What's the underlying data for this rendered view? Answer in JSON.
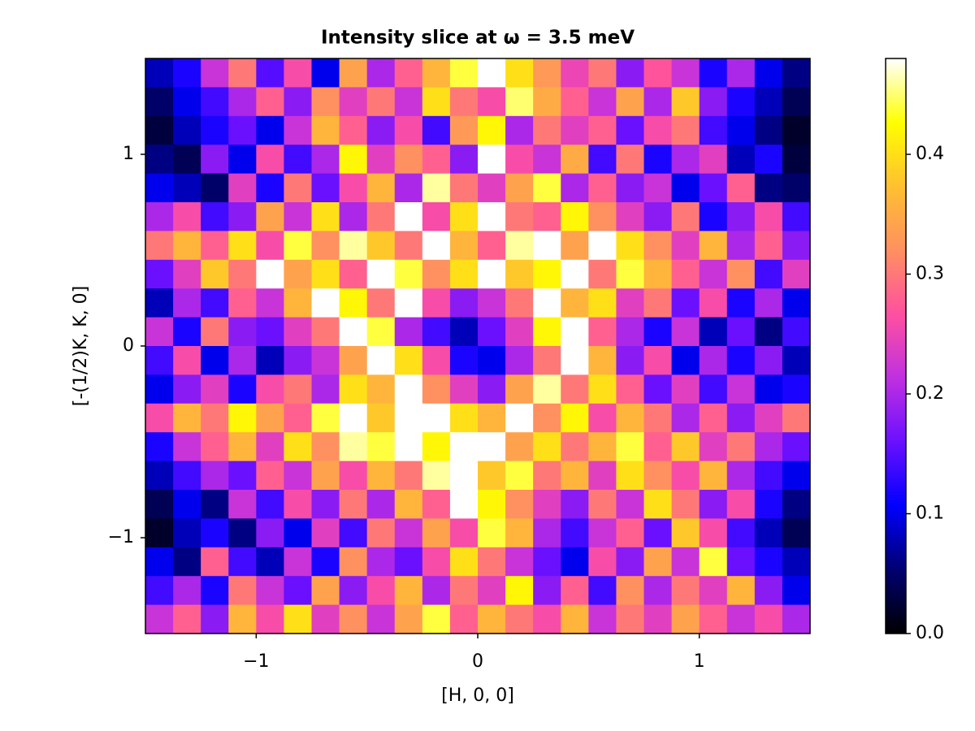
{
  "chart_data": {
    "type": "heatmap",
    "title": "Intensity slice at ω = 3.5 meV",
    "xlabel": "[H, 0, 0]",
    "ylabel": "[-(1/2)K, K, 0]",
    "xlim": [
      -1.5,
      1.5
    ],
    "ylim": [
      -1.5,
      1.5
    ],
    "xticks": [
      {
        "value": -1,
        "label": "−1"
      },
      0,
      1
    ],
    "yticks": [
      {
        "value": -1,
        "label": "−1"
      },
      0,
      1
    ],
    "clim": [
      0,
      0.48
    ],
    "cticks": [
      {
        "value": 0,
        "label": "0.0"
      },
      0.1,
      0.2,
      0.3,
      0.4
    ],
    "colormap": [
      "#000000",
      "#000070",
      "#0000ff",
      "#6a10ff",
      "#c030e0",
      "#ff50a0",
      "#ff9060",
      "#ffc030",
      "#ffff00",
      "#ffffff"
    ],
    "z": [
      [
        0.08,
        0.12,
        0.22,
        0.3,
        0.15,
        0.26,
        0.1,
        0.34,
        0.2,
        0.28,
        0.36,
        0.44,
        0.48,
        0.4,
        0.33,
        0.25,
        0.3,
        0.18,
        0.27,
        0.22,
        0.12,
        0.2,
        0.1,
        0.06
      ],
      [
        0.05,
        0.1,
        0.14,
        0.2,
        0.28,
        0.18,
        0.32,
        0.24,
        0.3,
        0.22,
        0.4,
        0.3,
        0.26,
        0.45,
        0.35,
        0.28,
        0.22,
        0.34,
        0.2,
        0.38,
        0.18,
        0.12,
        0.08,
        0.04
      ],
      [
        0.03,
        0.08,
        0.12,
        0.16,
        0.1,
        0.22,
        0.36,
        0.28,
        0.18,
        0.26,
        0.14,
        0.33,
        0.42,
        0.2,
        0.3,
        0.24,
        0.28,
        0.16,
        0.26,
        0.3,
        0.14,
        0.1,
        0.06,
        0.02
      ],
      [
        0.06,
        0.04,
        0.18,
        0.1,
        0.26,
        0.14,
        0.2,
        0.42,
        0.24,
        0.32,
        0.28,
        0.18,
        0.48,
        0.26,
        0.22,
        0.35,
        0.14,
        0.3,
        0.12,
        0.2,
        0.24,
        0.08,
        0.12,
        0.03
      ],
      [
        0.1,
        0.08,
        0.05,
        0.24,
        0.12,
        0.3,
        0.16,
        0.26,
        0.36,
        0.2,
        0.46,
        0.3,
        0.24,
        0.34,
        0.44,
        0.2,
        0.28,
        0.18,
        0.22,
        0.1,
        0.16,
        0.28,
        0.06,
        0.05
      ],
      [
        0.2,
        0.26,
        0.14,
        0.18,
        0.34,
        0.22,
        0.4,
        0.2,
        0.3,
        0.48,
        0.26,
        0.4,
        0.48,
        0.3,
        0.28,
        0.42,
        0.32,
        0.24,
        0.18,
        0.3,
        0.12,
        0.18,
        0.26,
        0.14
      ],
      [
        0.3,
        0.36,
        0.28,
        0.4,
        0.26,
        0.44,
        0.32,
        0.46,
        0.38,
        0.3,
        0.48,
        0.36,
        0.28,
        0.46,
        0.48,
        0.34,
        0.48,
        0.4,
        0.32,
        0.24,
        0.36,
        0.2,
        0.28,
        0.18
      ],
      [
        0.16,
        0.24,
        0.38,
        0.3,
        0.48,
        0.34,
        0.4,
        0.28,
        0.48,
        0.44,
        0.32,
        0.4,
        0.48,
        0.38,
        0.42,
        0.48,
        0.3,
        0.44,
        0.36,
        0.28,
        0.22,
        0.32,
        0.14,
        0.24
      ],
      [
        0.08,
        0.2,
        0.14,
        0.28,
        0.22,
        0.36,
        0.48,
        0.42,
        0.3,
        0.48,
        0.26,
        0.18,
        0.22,
        0.3,
        0.48,
        0.36,
        0.4,
        0.24,
        0.3,
        0.16,
        0.26,
        0.12,
        0.2,
        0.1
      ],
      [
        0.22,
        0.12,
        0.3,
        0.18,
        0.16,
        0.24,
        0.3,
        0.48,
        0.44,
        0.2,
        0.14,
        0.08,
        0.16,
        0.24,
        0.42,
        0.48,
        0.28,
        0.2,
        0.12,
        0.22,
        0.08,
        0.16,
        0.06,
        0.14
      ],
      [
        0.14,
        0.26,
        0.1,
        0.2,
        0.08,
        0.18,
        0.22,
        0.34,
        0.48,
        0.4,
        0.26,
        0.12,
        0.1,
        0.2,
        0.3,
        0.48,
        0.36,
        0.18,
        0.26,
        0.1,
        0.2,
        0.12,
        0.18,
        0.08
      ],
      [
        0.1,
        0.18,
        0.24,
        0.12,
        0.26,
        0.3,
        0.2,
        0.4,
        0.36,
        0.48,
        0.32,
        0.24,
        0.18,
        0.34,
        0.46,
        0.3,
        0.4,
        0.28,
        0.16,
        0.24,
        0.14,
        0.22,
        0.1,
        0.12
      ],
      [
        0.26,
        0.36,
        0.3,
        0.42,
        0.34,
        0.28,
        0.44,
        0.48,
        0.38,
        0.48,
        0.48,
        0.4,
        0.36,
        0.48,
        0.32,
        0.42,
        0.26,
        0.36,
        0.3,
        0.2,
        0.28,
        0.18,
        0.24,
        0.3
      ],
      [
        0.12,
        0.22,
        0.28,
        0.36,
        0.24,
        0.4,
        0.32,
        0.46,
        0.44,
        0.48,
        0.42,
        0.48,
        0.48,
        0.34,
        0.4,
        0.3,
        0.36,
        0.44,
        0.28,
        0.38,
        0.24,
        0.3,
        0.2,
        0.16
      ],
      [
        0.08,
        0.14,
        0.2,
        0.16,
        0.28,
        0.22,
        0.34,
        0.26,
        0.36,
        0.3,
        0.46,
        0.48,
        0.38,
        0.44,
        0.3,
        0.36,
        0.24,
        0.4,
        0.32,
        0.26,
        0.36,
        0.2,
        0.14,
        0.1
      ],
      [
        0.04,
        0.1,
        0.06,
        0.22,
        0.14,
        0.26,
        0.18,
        0.3,
        0.2,
        0.36,
        0.28,
        0.48,
        0.42,
        0.32,
        0.24,
        0.18,
        0.3,
        0.22,
        0.4,
        0.3,
        0.18,
        0.26,
        0.12,
        0.06
      ],
      [
        0.02,
        0.08,
        0.12,
        0.06,
        0.18,
        0.1,
        0.24,
        0.14,
        0.3,
        0.22,
        0.34,
        0.26,
        0.44,
        0.36,
        0.2,
        0.14,
        0.22,
        0.28,
        0.16,
        0.38,
        0.26,
        0.14,
        0.08,
        0.04
      ],
      [
        0.1,
        0.06,
        0.28,
        0.14,
        0.08,
        0.22,
        0.12,
        0.32,
        0.2,
        0.16,
        0.26,
        0.4,
        0.3,
        0.22,
        0.16,
        0.1,
        0.26,
        0.18,
        0.34,
        0.22,
        0.44,
        0.16,
        0.12,
        0.08
      ],
      [
        0.14,
        0.2,
        0.12,
        0.3,
        0.22,
        0.16,
        0.34,
        0.18,
        0.26,
        0.36,
        0.2,
        0.3,
        0.24,
        0.42,
        0.18,
        0.28,
        0.14,
        0.32,
        0.2,
        0.3,
        0.24,
        0.36,
        0.18,
        0.1
      ],
      [
        0.22,
        0.28,
        0.18,
        0.36,
        0.26,
        0.4,
        0.24,
        0.32,
        0.22,
        0.34,
        0.44,
        0.28,
        0.36,
        0.3,
        0.26,
        0.36,
        0.22,
        0.3,
        0.24,
        0.34,
        0.28,
        0.22,
        0.26,
        0.2
      ]
    ]
  }
}
